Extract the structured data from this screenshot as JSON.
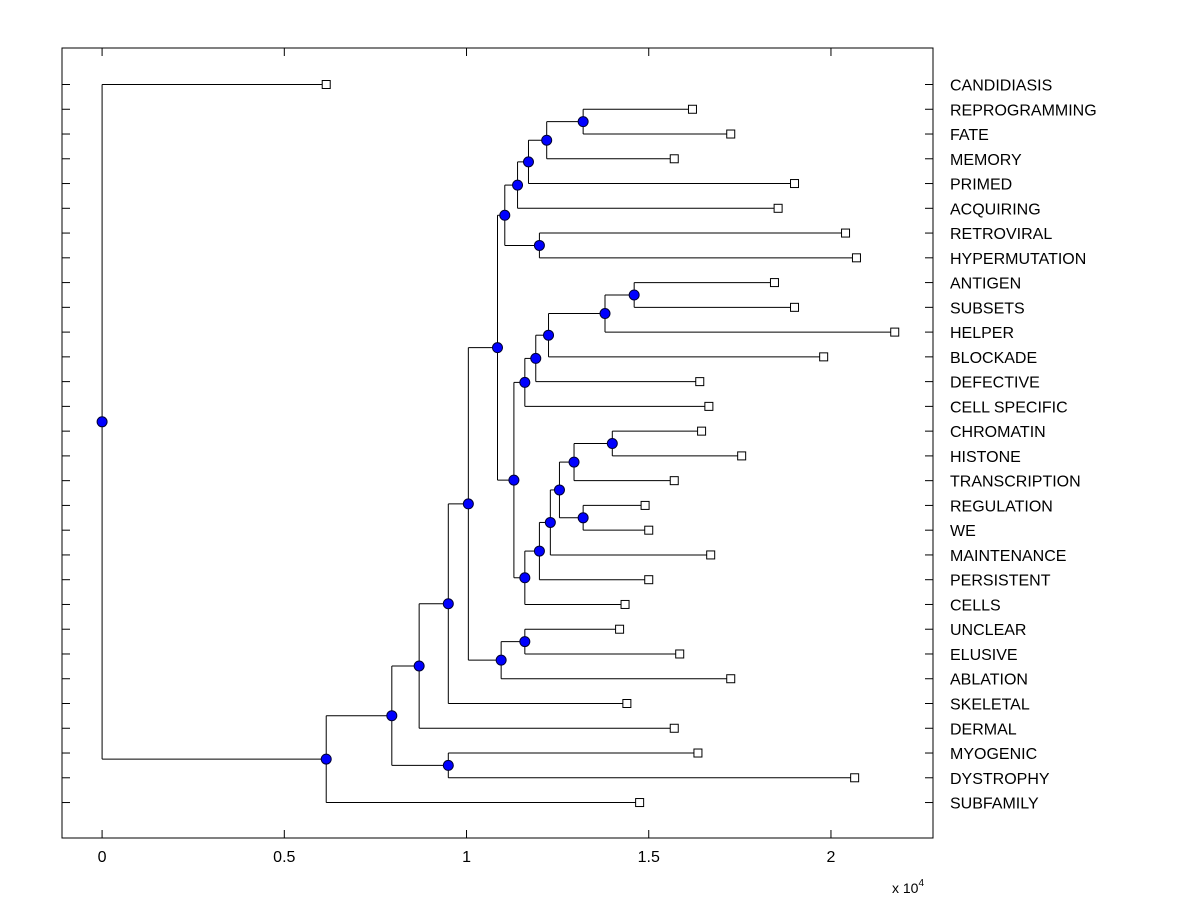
{
  "chart_data": {
    "type": "dendrogram",
    "xlim": [
      -1100,
      22800
    ],
    "x_ticks": [
      0,
      5000,
      10000,
      15000,
      20000
    ],
    "x_tick_labels": [
      "0",
      "0.5",
      "1",
      "1.5",
      "2"
    ],
    "x_exponent_label": "x 10",
    "x_exponent_power": "4",
    "grid": false,
    "leaves": [
      {
        "label": "CANDIDIASIS",
        "x": 6150
      },
      {
        "label": "REPROGRAMMING",
        "x": 16200
      },
      {
        "label": "FATE",
        "x": 17250
      },
      {
        "label": "MEMORY",
        "x": 15700
      },
      {
        "label": "PRIMED",
        "x": 19000
      },
      {
        "label": "ACQUIRING",
        "x": 18550
      },
      {
        "label": "RETROVIRAL",
        "x": 20400
      },
      {
        "label": "HYPERMUTATION",
        "x": 20700
      },
      {
        "label": "ANTIGEN",
        "x": 18450
      },
      {
        "label": "SUBSETS",
        "x": 19000
      },
      {
        "label": "HELPER",
        "x": 21750
      },
      {
        "label": "BLOCKADE",
        "x": 19800
      },
      {
        "label": "DEFECTIVE",
        "x": 16400
      },
      {
        "label": "CELL SPECIFIC",
        "x": 16650
      },
      {
        "label": "CHROMATIN",
        "x": 16450
      },
      {
        "label": "HISTONE",
        "x": 17550
      },
      {
        "label": "TRANSCRIPTION",
        "x": 15700
      },
      {
        "label": "REGULATION",
        "x": 14900
      },
      {
        "label": "WE",
        "x": 15000
      },
      {
        "label": "MAINTENANCE",
        "x": 16700
      },
      {
        "label": "PERSISTENT",
        "x": 15000
      },
      {
        "label": "CELLS",
        "x": 14350
      },
      {
        "label": "UNCLEAR",
        "x": 14200
      },
      {
        "label": "ELUSIVE",
        "x": 15850
      },
      {
        "label": "ABLATION",
        "x": 17250
      },
      {
        "label": "SKELETAL",
        "x": 14400
      },
      {
        "label": "DERMAL",
        "x": 15700
      },
      {
        "label": "MYOGENIC",
        "x": 16350
      },
      {
        "label": "DYSTROPHY",
        "x": 20650
      },
      {
        "label": "SUBFAMILY",
        "x": 14750
      }
    ],
    "merges": [
      {
        "id": "n1",
        "x": 13200,
        "children": [
          1,
          2
        ]
      },
      {
        "id": "n2",
        "x": 12200,
        "children": [
          "n1",
          3
        ]
      },
      {
        "id": "n3",
        "x": 11700,
        "children": [
          "n2",
          4
        ]
      },
      {
        "id": "n4",
        "x": 11400,
        "children": [
          "n3",
          5
        ]
      },
      {
        "id": "n5",
        "x": 12000,
        "children": [
          6,
          7
        ]
      },
      {
        "id": "n6",
        "x": 11050,
        "children": [
          "n4",
          "n5"
        ]
      },
      {
        "id": "n7",
        "x": 14600,
        "children": [
          8,
          9
        ]
      },
      {
        "id": "n8",
        "x": 13800,
        "children": [
          "n7",
          10
        ]
      },
      {
        "id": "n9",
        "x": 12250,
        "children": [
          "n8",
          11
        ]
      },
      {
        "id": "n10",
        "x": 11900,
        "children": [
          "n9",
          12
        ]
      },
      {
        "id": "n11",
        "x": 11600,
        "children": [
          "n10",
          13
        ]
      },
      {
        "id": "n12",
        "x": 14000,
        "children": [
          14,
          15
        ]
      },
      {
        "id": "n13",
        "x": 12950,
        "children": [
          "n12",
          16
        ]
      },
      {
        "id": "n14",
        "x": 13200,
        "children": [
          17,
          18
        ]
      },
      {
        "id": "n15",
        "x": 12550,
        "children": [
          "n13",
          "n14"
        ]
      },
      {
        "id": "n16",
        "x": 12300,
        "children": [
          "n15",
          19
        ]
      },
      {
        "id": "n17",
        "x": 12000,
        "children": [
          "n16",
          20
        ]
      },
      {
        "id": "n18",
        "x": 11600,
        "children": [
          "n17",
          21
        ]
      },
      {
        "id": "n19",
        "x": 11300,
        "children": [
          "n11",
          "n18"
        ]
      },
      {
        "id": "n20",
        "x": 10850,
        "children": [
          "n6",
          "n19"
        ]
      },
      {
        "id": "n21",
        "x": 11600,
        "children": [
          22,
          23
        ]
      },
      {
        "id": "n22",
        "x": 10950,
        "children": [
          "n21",
          24
        ]
      },
      {
        "id": "n23",
        "x": 10050,
        "children": [
          "n20",
          "n22"
        ]
      },
      {
        "id": "n24",
        "x": 9500,
        "children": [
          "n23",
          25
        ]
      },
      {
        "id": "n25",
        "x": 8700,
        "children": [
          "n24",
          26
        ]
      },
      {
        "id": "n26",
        "x": 9500,
        "children": [
          27,
          28
        ]
      },
      {
        "id": "n27",
        "x": 7950,
        "children": [
          "n25",
          "n26"
        ]
      },
      {
        "id": "n28",
        "x": 6150,
        "children": [
          "n27",
          29
        ]
      },
      {
        "id": "n29",
        "x": 0,
        "children": [
          0,
          "n28"
        ]
      }
    ],
    "leaf_marker_color": "#ffffff",
    "node_marker_color": "#0000ff"
  }
}
